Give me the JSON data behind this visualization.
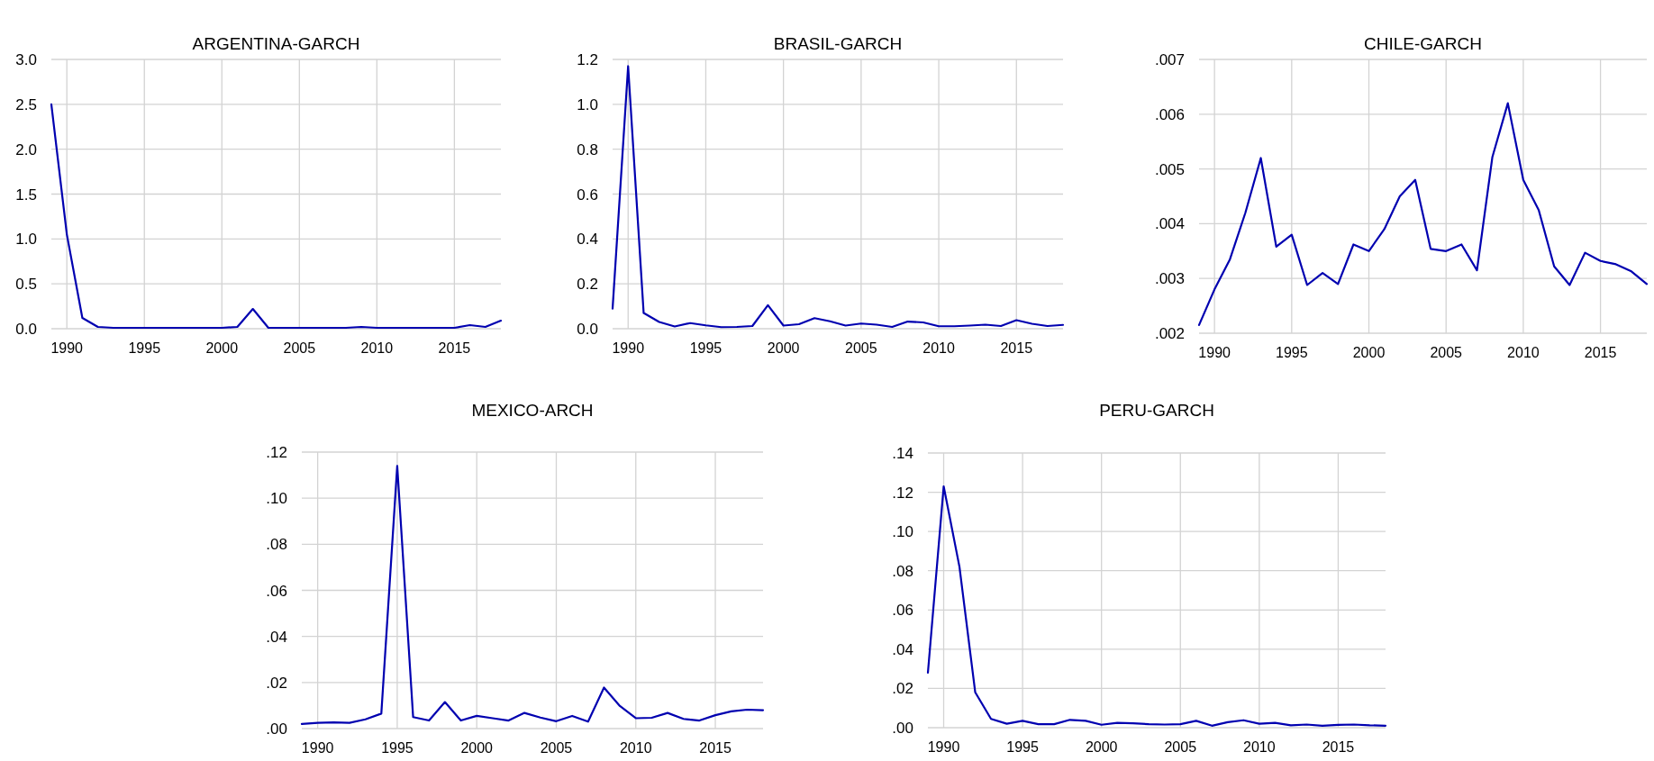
{
  "chart_data": [
    {
      "type": "line",
      "title": "ARGENTINA-GARCH",
      "x": [
        1989,
        1990,
        1991,
        1992,
        1993,
        1994,
        1995,
        1996,
        1997,
        1998,
        1999,
        2000,
        2001,
        2002,
        2003,
        2004,
        2005,
        2006,
        2007,
        2008,
        2009,
        2010,
        2011,
        2012,
        2013,
        2014,
        2015,
        2016,
        2017,
        2018
      ],
      "series": [
        {
          "color": "#0000b0",
          "values": [
            2.5,
            1.05,
            0.12,
            0.02,
            0.01,
            0.01,
            0.01,
            0.01,
            0.01,
            0.01,
            0.01,
            0.01,
            0.02,
            0.22,
            0.01,
            0.01,
            0.01,
            0.01,
            0.01,
            0.01,
            0.02,
            0.01,
            0.01,
            0.01,
            0.01,
            0.01,
            0.01,
            0.04,
            0.02,
            0.09
          ]
        }
      ],
      "xlim": [
        1989,
        2018
      ],
      "xticks": [
        1990,
        1995,
        2000,
        2005,
        2010,
        2015
      ],
      "ylim": [
        0,
        3
      ],
      "yticks": [
        {
          "value": 0,
          "label": "0.0"
        },
        {
          "value": 0.5,
          "label": "0.5"
        },
        {
          "value": 1,
          "label": "1.0"
        },
        {
          "value": 1.5,
          "label": "1.5"
        },
        {
          "value": 2,
          "label": "2.0"
        },
        {
          "value": 2.5,
          "label": "2.5"
        },
        {
          "value": 3,
          "label": "3.0"
        }
      ],
      "grid": true
    },
    {
      "type": "line",
      "title": "BRASIL-GARCH",
      "x": [
        1989,
        1990,
        1991,
        1992,
        1993,
        1994,
        1995,
        1996,
        1997,
        1998,
        1999,
        2000,
        2001,
        2002,
        2003,
        2004,
        2005,
        2006,
        2007,
        2008,
        2009,
        2010,
        2011,
        2012,
        2013,
        2014,
        2015,
        2016,
        2017,
        2018
      ],
      "series": [
        {
          "color": "#0000b0",
          "values": [
            0.09,
            1.17,
            0.07,
            0.03,
            0.01,
            0.025,
            0.015,
            0.007,
            0.008,
            0.012,
            0.105,
            0.014,
            0.02,
            0.047,
            0.033,
            0.014,
            0.023,
            0.018,
            0.008,
            0.032,
            0.028,
            0.011,
            0.011,
            0.014,
            0.018,
            0.012,
            0.038,
            0.022,
            0.012,
            0.017
          ]
        }
      ],
      "xlim": [
        1989,
        2018
      ],
      "xticks": [
        1990,
        1995,
        2000,
        2005,
        2010,
        2015
      ],
      "ylim": [
        0,
        1.2
      ],
      "yticks": [
        {
          "value": 0,
          "label": "0.0"
        },
        {
          "value": 0.2,
          "label": "0.2"
        },
        {
          "value": 0.4,
          "label": "0.4"
        },
        {
          "value": 0.6,
          "label": "0.6"
        },
        {
          "value": 0.8,
          "label": "0.8"
        },
        {
          "value": 1,
          "label": "1.0"
        },
        {
          "value": 1.2,
          "label": "1.2"
        }
      ],
      "grid": true
    },
    {
      "type": "line",
      "title": "CHILE-GARCH",
      "x": [
        1989,
        1990,
        1991,
        1992,
        1993,
        1994,
        1995,
        1996,
        1997,
        1998,
        1999,
        2000,
        2001,
        2002,
        2003,
        2004,
        2005,
        2006,
        2007,
        2008,
        2009,
        2010,
        2011,
        2012,
        2013,
        2014,
        2015,
        2016,
        2017,
        2018
      ],
      "series": [
        {
          "color": "#0000b0",
          "values": [
            0.00215,
            0.0028,
            0.00335,
            0.0042,
            0.0052,
            0.00358,
            0.0038,
            0.00288,
            0.0031,
            0.0029,
            0.00362,
            0.0035,
            0.0039,
            0.0045,
            0.0048,
            0.00354,
            0.0035,
            0.00362,
            0.00315,
            0.00522,
            0.0062,
            0.0048,
            0.00425,
            0.00322,
            0.00288,
            0.00347,
            0.00332,
            0.00326,
            0.00313,
            0.0029
          ]
        }
      ],
      "xlim": [
        1989,
        2018
      ],
      "xticks": [
        1990,
        1995,
        2000,
        2005,
        2010,
        2015
      ],
      "ylim": [
        0.002,
        0.007
      ],
      "yticks": [
        {
          "value": 0.002,
          "label": ".002"
        },
        {
          "value": 0.003,
          "label": ".003"
        },
        {
          "value": 0.004,
          "label": ".004"
        },
        {
          "value": 0.005,
          "label": ".005"
        },
        {
          "value": 0.006,
          "label": ".006"
        },
        {
          "value": 0.007,
          "label": ".007"
        }
      ],
      "grid": true
    },
    {
      "type": "line",
      "title": "MEXICO-ARCH",
      "x": [
        1989,
        1990,
        1991,
        1992,
        1993,
        1994,
        1995,
        1996,
        1997,
        1998,
        1999,
        2000,
        2001,
        2002,
        2003,
        2004,
        2005,
        2006,
        2007,
        2008,
        2009,
        2010,
        2011,
        2012,
        2013,
        2014,
        2015,
        2016,
        2017,
        2018
      ],
      "series": [
        {
          "color": "#0000b0",
          "values": [
            0.002,
            0.0025,
            0.0027,
            0.0025,
            0.004,
            0.0065,
            0.114,
            0.005,
            0.0035,
            0.0115,
            0.0035,
            0.0055,
            0.0045,
            0.0035,
            0.0068,
            0.0048,
            0.0032,
            0.0055,
            0.003,
            0.0178,
            0.0098,
            0.0045,
            0.0047,
            0.0068,
            0.0042,
            0.0035,
            0.0058,
            0.0075,
            0.0082,
            0.008
          ]
        }
      ],
      "xlim": [
        1989,
        2018
      ],
      "xticks": [
        1990,
        1995,
        2000,
        2005,
        2010,
        2015
      ],
      "ylim": [
        0,
        0.12
      ],
      "yticks": [
        {
          "value": 0,
          "label": ".00"
        },
        {
          "value": 0.02,
          "label": ".02"
        },
        {
          "value": 0.04,
          "label": ".04"
        },
        {
          "value": 0.06,
          "label": ".06"
        },
        {
          "value": 0.08,
          "label": ".08"
        },
        {
          "value": 0.1,
          "label": ".10"
        },
        {
          "value": 0.12,
          "label": ".12"
        }
      ],
      "grid": true
    },
    {
      "type": "line",
      "title": "PERU-GARCH",
      "x": [
        1989,
        1990,
        1991,
        1992,
        1993,
        1994,
        1995,
        1996,
        1997,
        1998,
        1999,
        2000,
        2001,
        2002,
        2003,
        2004,
        2005,
        2006,
        2007,
        2008,
        2009,
        2010,
        2011,
        2012,
        2013,
        2014,
        2015,
        2016,
        2017,
        2018
      ],
      "series": [
        {
          "color": "#0000b0",
          "values": [
            0.028,
            0.123,
            0.082,
            0.018,
            0.0045,
            0.002,
            0.0035,
            0.0018,
            0.0018,
            0.004,
            0.0035,
            0.0015,
            0.0025,
            0.0022,
            0.0018,
            0.0016,
            0.0018,
            0.0035,
            0.001,
            0.0028,
            0.0038,
            0.002,
            0.0025,
            0.0012,
            0.0016,
            0.001,
            0.0014,
            0.0016,
            0.0012,
            0.001
          ]
        }
      ],
      "xlim": [
        1989,
        2018
      ],
      "xticks": [
        1990,
        1995,
        2000,
        2005,
        2010,
        2015
      ],
      "ylim": [
        0,
        0.14
      ],
      "yticks": [
        {
          "value": 0,
          "label": ".00"
        },
        {
          "value": 0.02,
          "label": ".02"
        },
        {
          "value": 0.04,
          "label": ".04"
        },
        {
          "value": 0.06,
          "label": ".06"
        },
        {
          "value": 0.08,
          "label": ".08"
        },
        {
          "value": 0.1,
          "label": ".10"
        },
        {
          "value": 0.12,
          "label": ".12"
        },
        {
          "value": 0.14,
          "label": ".14"
        }
      ],
      "grid": true
    }
  ]
}
